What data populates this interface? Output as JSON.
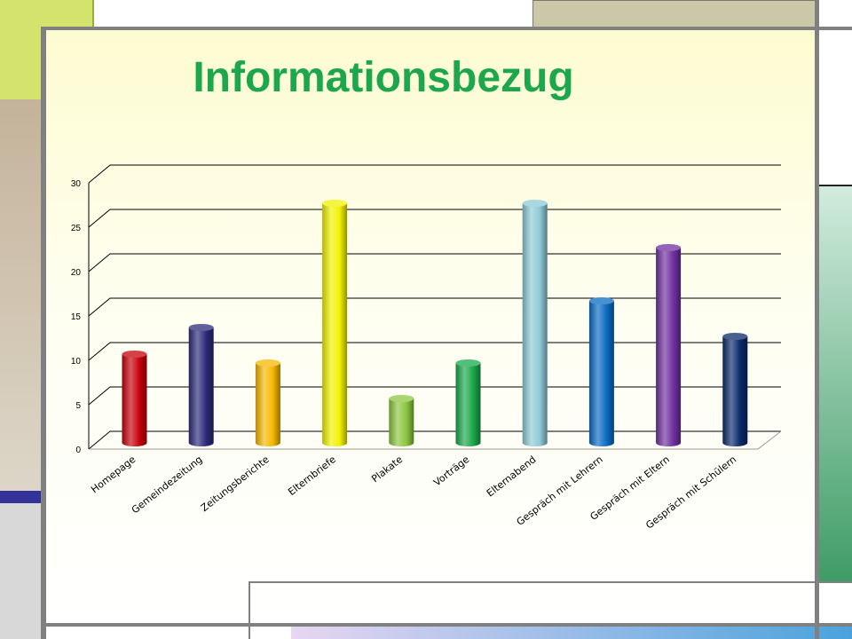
{
  "slide": {
    "title": "Informationsbezug",
    "accent_color": "#1ca74d"
  },
  "chart_data": {
    "type": "bar",
    "title": "",
    "xlabel": "",
    "ylabel": "",
    "ylim": [
      0,
      30
    ],
    "yticks": [
      0,
      5,
      10,
      15,
      20,
      25,
      30
    ],
    "grid": true,
    "categories": [
      "Homepage",
      "Gemeindezeitung",
      "Zeitungsberichte",
      "Elternbriefe",
      "Plakate",
      "Vorträge",
      "Elternabend",
      "Gespräch mit Lehrern",
      "Gespräch mit Eltern",
      "Gespräch mit Schülern"
    ],
    "values": [
      10,
      13,
      9,
      27,
      5,
      9,
      27,
      16,
      22,
      12
    ],
    "colors": [
      "#c8000a",
      "#2b2b7a",
      "#f5b800",
      "#f2f200",
      "#8cc63f",
      "#1aa84a",
      "#8ecad6",
      "#0a6cc4",
      "#7030a0",
      "#0b2a6a"
    ]
  }
}
